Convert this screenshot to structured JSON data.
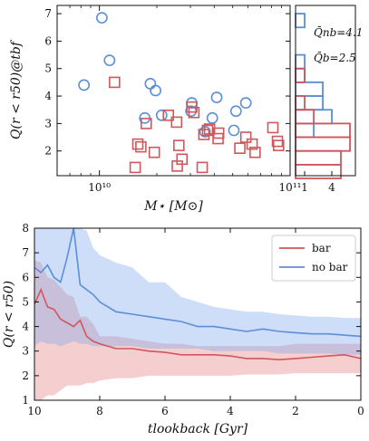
{
  "chart_data": [
    {
      "type": "scatter",
      "title": "",
      "xlabel": "M⋆ [M⊙]",
      "ylabel": "Q(r < r50)@tbf",
      "xscale": "log",
      "xlim": [
        6000000000.0,
        100000000000.0
      ],
      "ylim": [
        1.1,
        7.3
      ],
      "xticks": [
        "10¹⁰",
        "10¹¹"
      ],
      "yticks": [
        2,
        3,
        4,
        5,
        6,
        7
      ],
      "series": [
        {
          "name": "no bar",
          "marker": "circle",
          "color": "#5b8fd8",
          "points": [
            [
              8300000000.0,
              4.4
            ],
            [
              10300000000.0,
              6.85
            ],
            [
              11300000000.0,
              5.3
            ],
            [
              17300000000.0,
              3.2
            ],
            [
              18500000000.0,
              4.45
            ],
            [
              19700000000.0,
              4.2
            ],
            [
              21200000000.0,
              3.3
            ],
            [
              30500000000.0,
              3.75
            ],
            [
              30200000000.0,
              3.45
            ],
            [
              35800000000.0,
              2.7
            ],
            [
              39100000000.0,
              3.2
            ],
            [
              41200000000.0,
              3.95
            ],
            [
              52000000000.0,
              3.45
            ],
            [
              58600000000.0,
              3.75
            ],
            [
              50700000000.0,
              2.75
            ]
          ]
        },
        {
          "name": "bar",
          "marker": "square",
          "color": "#d0575b",
          "points": [
            [
              12000000000.0,
              4.5
            ],
            [
              15400000000.0,
              1.4
            ],
            [
              15900000000.0,
              2.25
            ],
            [
              16500000000.0,
              2.15
            ],
            [
              17600000000.0,
              3.0
            ],
            [
              19400000000.0,
              1.95
            ],
            [
              23000000000.0,
              3.3
            ],
            [
              25400000000.0,
              3.05
            ],
            [
              25600000000.0,
              1.45
            ],
            [
              26100000000.0,
              2.2
            ],
            [
              27100000000.0,
              1.7
            ],
            [
              30500000000.0,
              3.6
            ],
            [
              31300000000.0,
              3.4
            ],
            [
              34600000000.0,
              1.4
            ],
            [
              35300000000.0,
              2.6
            ],
            [
              36900000000.0,
              2.75
            ],
            [
              37800000000.0,
              2.8
            ],
            [
              41900000000.0,
              2.45
            ],
            [
              42200000000.0,
              2.65
            ],
            [
              54500000000.0,
              2.1
            ],
            [
              58600000000.0,
              2.5
            ],
            [
              63200000000.0,
              2.25
            ],
            [
              65500000000.0,
              1.95
            ],
            [
              81200000000.0,
              2.85
            ],
            [
              85800000000.0,
              2.35
            ],
            [
              87000000000.0,
              2.2
            ]
          ]
        }
      ]
    },
    {
      "type": "histogram",
      "orientation": "horizontal",
      "xticks": [
        "1",
        "4"
      ],
      "xlim": [
        0,
        6.6
      ],
      "ylim": [
        1.1,
        7.3
      ],
      "series": [
        {
          "name": "no bar",
          "color": "#5b8fd8",
          "label": "Q̄nb=4.1",
          "bins": [
            {
              "y0": 6.5,
              "y1": 7.0,
              "count": 1
            },
            {
              "y0": 5.0,
              "y1": 5.5,
              "count": 1
            },
            {
              "y0": 4.5,
              "y1": 5.0,
              "count": 1
            },
            {
              "y0": 4.0,
              "y1": 4.5,
              "count": 3
            },
            {
              "y0": 3.5,
              "y1": 4.0,
              "count": 3
            },
            {
              "y0": 3.0,
              "y1": 3.5,
              "count": 4
            },
            {
              "y0": 2.5,
              "y1": 3.0,
              "count": 2
            }
          ]
        },
        {
          "name": "bar",
          "color": "#d0575b",
          "label": "Q̄b=2.5",
          "bins": [
            {
              "y0": 4.5,
              "y1": 5.0,
              "count": 1
            },
            {
              "y0": 3.5,
              "y1": 4.0,
              "count": 1
            },
            {
              "y0": 3.0,
              "y1": 3.5,
              "count": 2
            },
            {
              "y0": 2.5,
              "y1": 3.0,
              "count": 6
            },
            {
              "y0": 2.0,
              "y1": 2.5,
              "count": 6
            },
            {
              "y0": 1.5,
              "y1": 2.0,
              "count": 5
            },
            {
              "y0": 1.0,
              "y1": 1.5,
              "count": 5
            }
          ]
        }
      ]
    },
    {
      "type": "line",
      "title": "",
      "xlabel": "tlookback [Gyr]",
      "ylabel": "Q(r < r50)",
      "xlim": [
        10,
        0
      ],
      "ylim": [
        1,
        8
      ],
      "xticks": [
        10,
        8,
        6,
        4,
        2,
        0
      ],
      "yticks": [
        1,
        2,
        3,
        4,
        5,
        6,
        7,
        8
      ],
      "legend": "top-right",
      "x": [
        10.0,
        9.8,
        9.6,
        9.4,
        9.2,
        9.0,
        8.8,
        8.6,
        8.4,
        8.2,
        8.0,
        7.5,
        7.0,
        6.5,
        6.0,
        5.5,
        5.0,
        4.5,
        4.0,
        3.5,
        3.0,
        2.5,
        2.0,
        1.5,
        1.0,
        0.5,
        0.0
      ],
      "series": [
        {
          "name": "bar",
          "color": "#d0575b",
          "values": [
            4.9,
            5.5,
            4.8,
            4.7,
            4.3,
            4.15,
            4.0,
            4.25,
            3.6,
            3.4,
            3.3,
            3.1,
            3.1,
            3.0,
            2.95,
            2.85,
            2.85,
            2.85,
            2.8,
            2.7,
            2.7,
            2.65,
            2.7,
            2.75,
            2.8,
            2.85,
            2.7
          ],
          "band_low": [
            1.0,
            1.0,
            1.2,
            1.2,
            1.4,
            1.6,
            1.6,
            1.6,
            1.7,
            1.7,
            1.8,
            1.9,
            1.9,
            2.0,
            2.0,
            2.0,
            2.0,
            2.0,
            2.0,
            2.05,
            2.05,
            2.05,
            2.1,
            2.1,
            2.1,
            2.1,
            2.1
          ],
          "band_high": [
            6.7,
            6.6,
            6.0,
            5.9,
            5.6,
            5.3,
            5.2,
            4.4,
            4.4,
            4.1,
            3.6,
            3.6,
            3.5,
            3.4,
            3.3,
            3.3,
            3.2,
            3.2,
            3.2,
            3.2,
            3.2,
            3.2,
            3.3,
            3.3,
            3.3,
            3.3,
            3.3
          ]
        },
        {
          "name": "no bar",
          "color": "#5b8fd8",
          "values": [
            6.4,
            6.2,
            6.5,
            6.0,
            5.8,
            6.8,
            8.0,
            5.7,
            5.5,
            5.3,
            5.0,
            4.6,
            4.5,
            4.4,
            4.3,
            4.2,
            4.0,
            4.0,
            3.9,
            3.8,
            3.9,
            3.8,
            3.75,
            3.7,
            3.7,
            3.65,
            3.6
          ],
          "band_low": [
            3.2,
            3.4,
            3.3,
            3.3,
            3.2,
            3.3,
            3.4,
            3.3,
            3.3,
            3.2,
            3.2,
            3.2,
            3.2,
            3.1,
            3.1,
            3.1,
            3.1,
            3.0,
            3.0,
            3.0,
            3.0,
            2.9,
            2.9,
            2.9,
            2.9,
            2.85,
            2.85
          ],
          "band_high": [
            8.0,
            8.0,
            8.0,
            8.0,
            8.0,
            8.0,
            8.0,
            8.0,
            7.9,
            7.2,
            6.9,
            6.6,
            6.4,
            5.8,
            5.8,
            5.2,
            5.0,
            4.8,
            4.7,
            4.6,
            4.6,
            4.5,
            4.45,
            4.4,
            4.4,
            4.35,
            4.35
          ]
        }
      ]
    }
  ]
}
